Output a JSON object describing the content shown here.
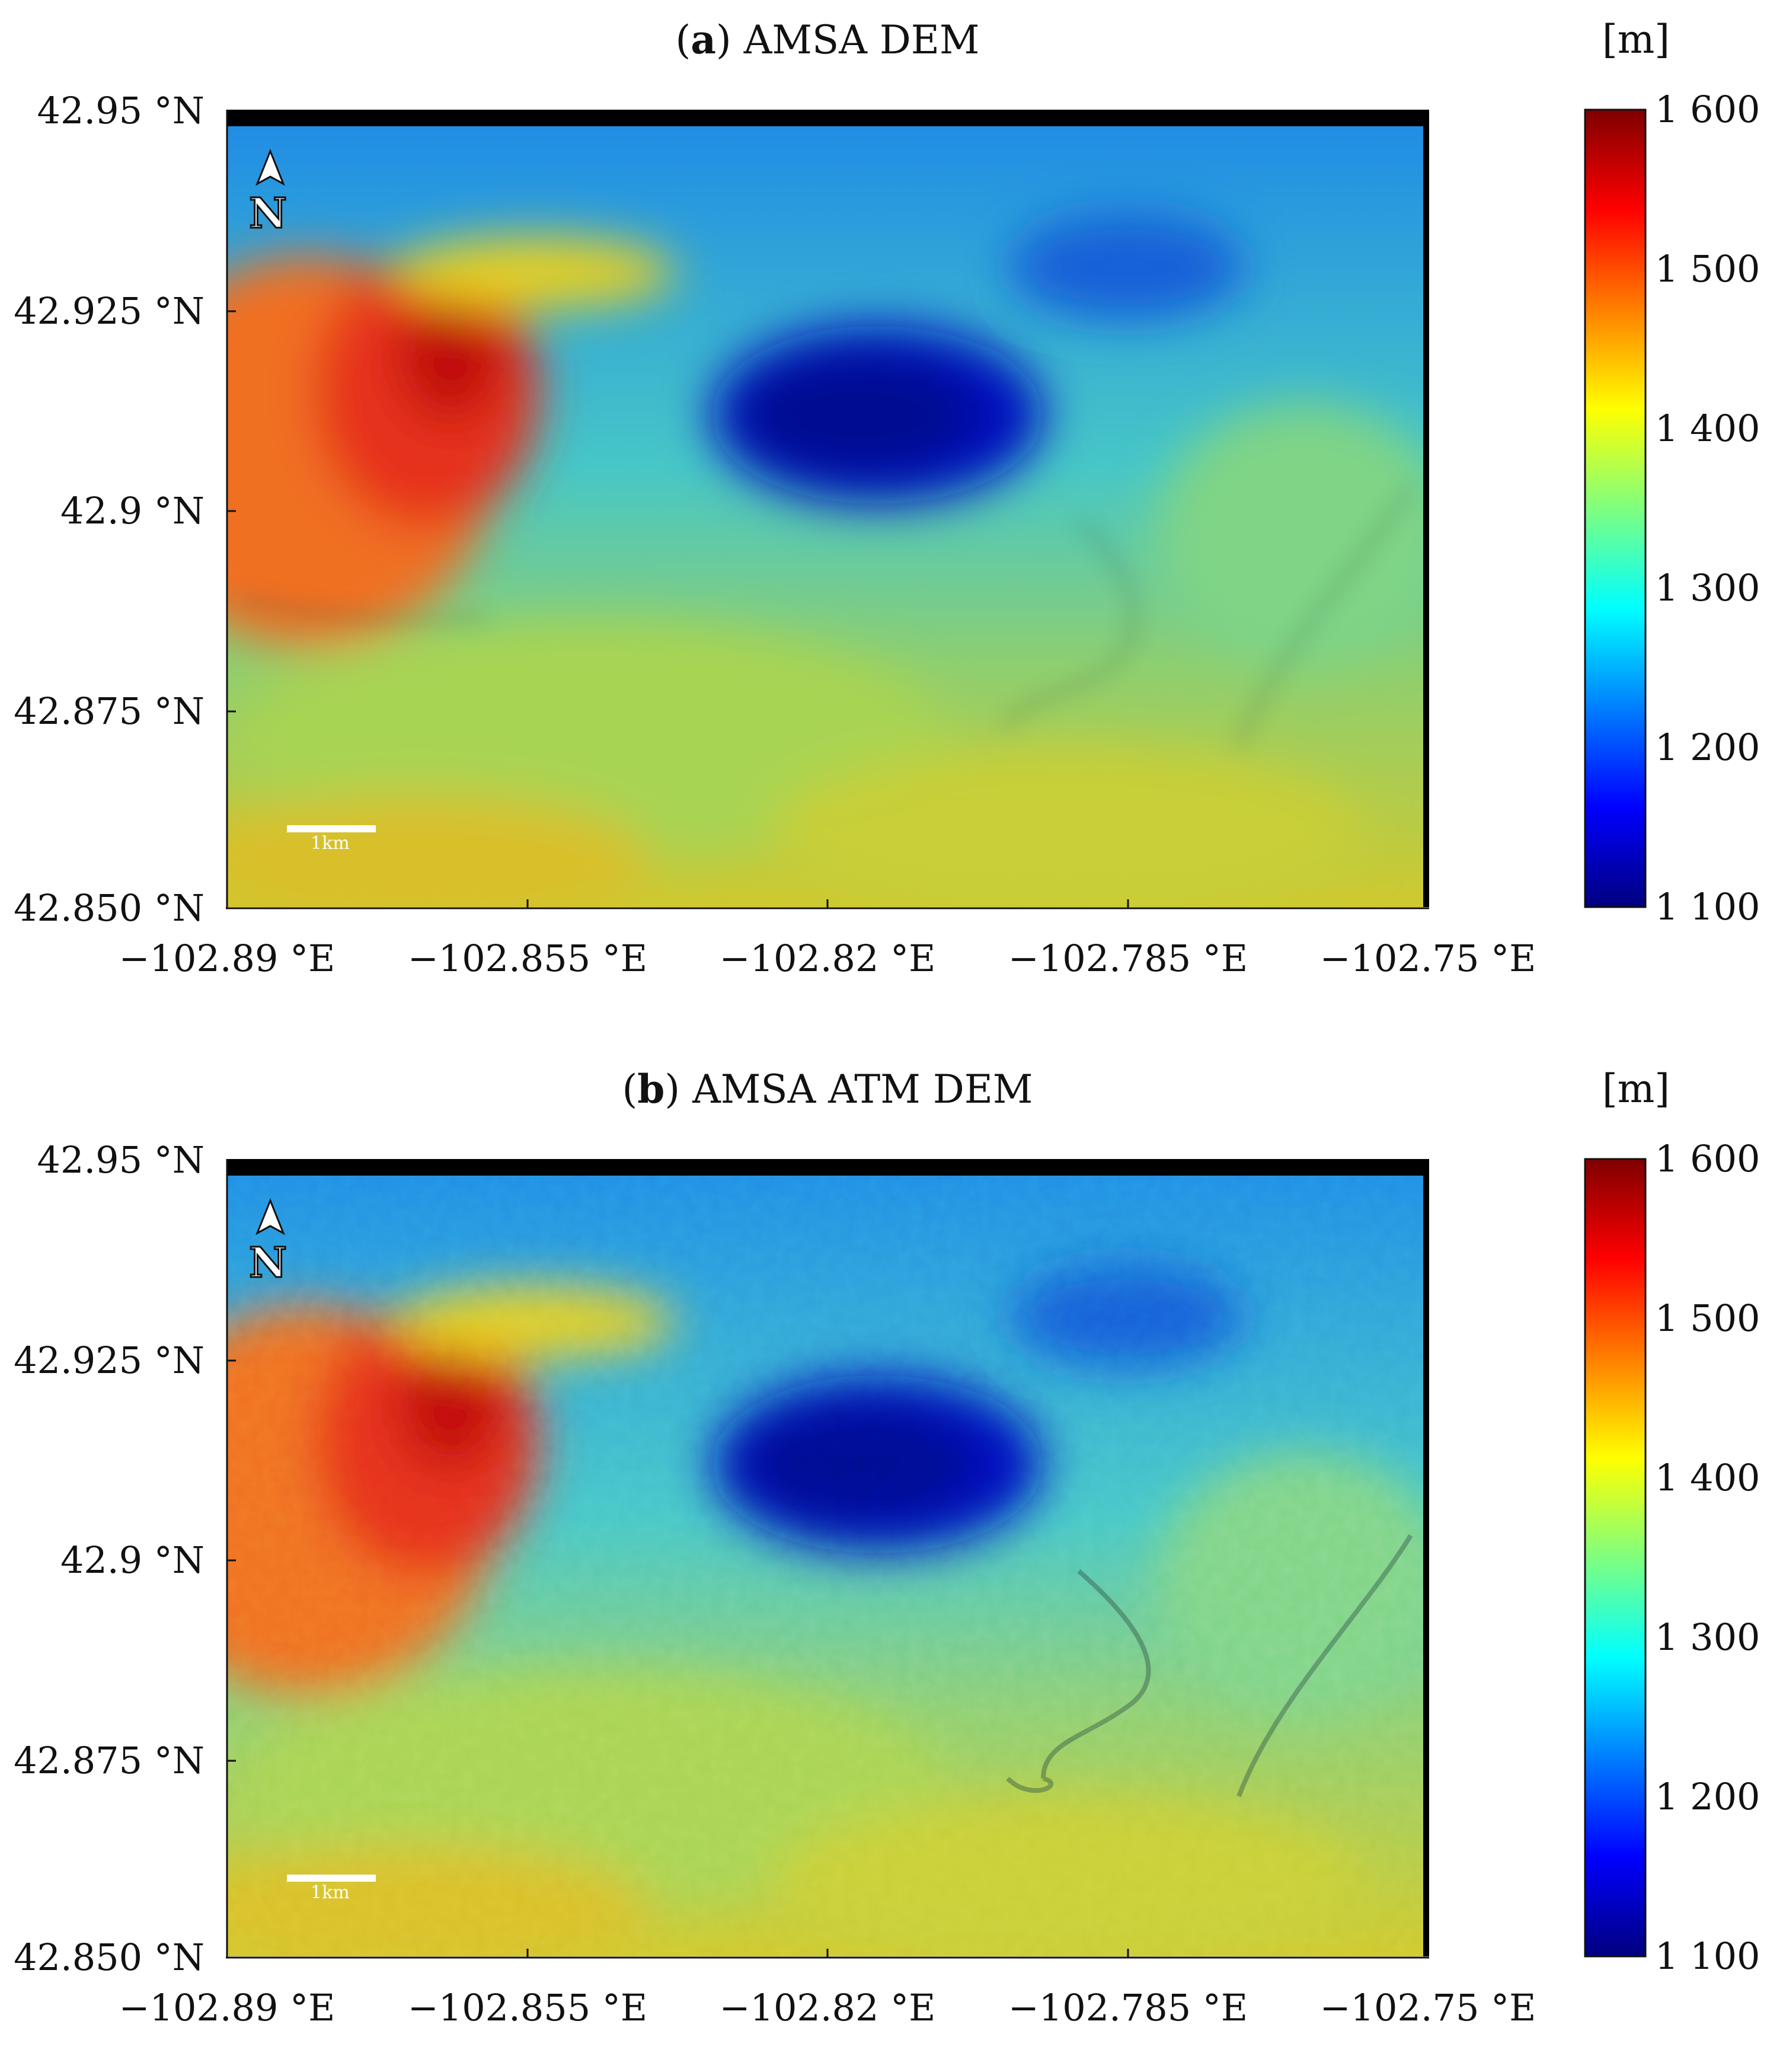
{
  "panels": [
    {
      "id": "a",
      "title_letter": "a",
      "title_text": "AMSA DEM",
      "unit": "[m]",
      "y_ticks": [
        "42.95 °N",
        "42.925 °N",
        "42.9 °N",
        "42.875 °N",
        "42.850 °N"
      ],
      "x_ticks": [
        "−102.89 °E",
        "−102.855 °E",
        "−102.82 °E",
        "−102.785 °E",
        "−102.75 °E"
      ],
      "colorbar_ticks": [
        "1 600",
        "1 500",
        "1 400",
        "1 300",
        "1 200",
        "1 100"
      ],
      "scale_bar_label": "1km",
      "north_label": "N",
      "relief": "smooth"
    },
    {
      "id": "b",
      "title_letter": "b",
      "title_text": "AMSA ATM DEM",
      "unit": "[m]",
      "y_ticks": [
        "42.95 °N",
        "42.925 °N",
        "42.9 °N",
        "42.875 °N",
        "42.850 °N"
      ],
      "x_ticks": [
        "−102.89 °E",
        "−102.855 °E",
        "−102.82 °E",
        "−102.785 °E",
        "−102.75 °E"
      ],
      "colorbar_ticks": [
        "1 600",
        "1 500",
        "1 400",
        "1 300",
        "1 200",
        "1 100"
      ],
      "scale_bar_label": "1km",
      "north_label": "N",
      "relief": "rough"
    }
  ],
  "colormap": [
    "#00007f",
    "#0000ff",
    "#007fff",
    "#00ffff",
    "#7fff7f",
    "#ffff00",
    "#ff7f00",
    "#ff0000",
    "#7f0000"
  ],
  "elevation_range_m": [
    1100,
    1600
  ]
}
